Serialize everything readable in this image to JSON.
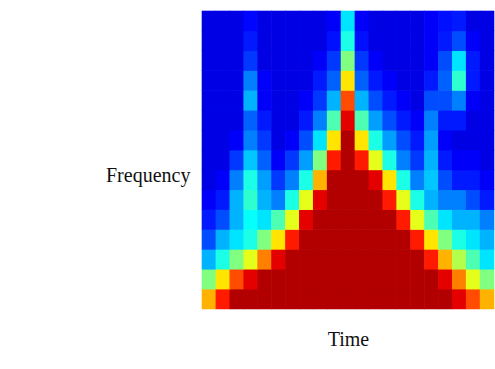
{
  "chart_data": {
    "type": "heatmap",
    "xlabel": "Time",
    "ylabel": "Frequency",
    "tick_labels": false,
    "color_range": [
      0,
      1
    ],
    "values": [
      [
        0.7,
        0.85,
        0.95,
        0.95,
        0.95,
        0.95,
        0.95,
        0.95,
        0.95,
        0.95,
        0.95,
        0.95,
        0.95,
        0.95,
        0.95,
        0.95,
        0.95,
        0.95,
        0.9,
        0.8,
        0.7
      ],
      [
        0.5,
        0.65,
        0.8,
        0.9,
        0.95,
        0.95,
        0.95,
        0.95,
        0.95,
        0.95,
        0.95,
        0.95,
        0.95,
        0.95,
        0.95,
        0.95,
        0.95,
        0.9,
        0.75,
        0.6,
        0.5
      ],
      [
        0.3,
        0.4,
        0.5,
        0.6,
        0.75,
        0.9,
        0.95,
        0.95,
        0.95,
        0.95,
        0.95,
        0.95,
        0.95,
        0.95,
        0.95,
        0.95,
        0.85,
        0.7,
        0.55,
        0.45,
        0.35
      ],
      [
        0.2,
        0.3,
        0.35,
        0.4,
        0.5,
        0.65,
        0.85,
        0.95,
        0.95,
        0.95,
        0.95,
        0.95,
        0.95,
        0.95,
        0.95,
        0.85,
        0.65,
        0.5,
        0.4,
        0.35,
        0.3
      ],
      [
        0.15,
        0.2,
        0.3,
        0.38,
        0.35,
        0.45,
        0.6,
        0.9,
        0.95,
        0.95,
        0.95,
        0.95,
        0.95,
        0.95,
        0.85,
        0.6,
        0.45,
        0.35,
        0.3,
        0.3,
        0.25
      ],
      [
        0.12,
        0.15,
        0.3,
        0.42,
        0.3,
        0.25,
        0.4,
        0.6,
        0.9,
        0.95,
        0.95,
        0.95,
        0.95,
        0.85,
        0.6,
        0.4,
        0.3,
        0.25,
        0.25,
        0.2,
        0.15
      ],
      [
        0.1,
        0.12,
        0.25,
        0.4,
        0.28,
        0.18,
        0.25,
        0.4,
        0.7,
        0.95,
        0.95,
        0.95,
        0.9,
        0.65,
        0.4,
        0.25,
        0.32,
        0.2,
        0.15,
        0.15,
        0.12
      ],
      [
        0.1,
        0.1,
        0.18,
        0.32,
        0.22,
        0.12,
        0.18,
        0.28,
        0.5,
        0.85,
        0.95,
        0.85,
        0.6,
        0.4,
        0.25,
        0.18,
        0.3,
        0.15,
        0.12,
        0.12,
        0.1
      ],
      [
        0.1,
        0.1,
        0.12,
        0.25,
        0.18,
        0.1,
        0.12,
        0.2,
        0.35,
        0.65,
        0.95,
        0.65,
        0.4,
        0.28,
        0.2,
        0.15,
        0.28,
        0.12,
        0.1,
        0.1,
        0.1
      ],
      [
        0.1,
        0.1,
        0.1,
        0.22,
        0.15,
        0.1,
        0.1,
        0.15,
        0.25,
        0.45,
        0.9,
        0.45,
        0.28,
        0.2,
        0.15,
        0.12,
        0.25,
        0.15,
        0.15,
        0.1,
        0.1
      ],
      [
        0.1,
        0.1,
        0.1,
        0.3,
        0.12,
        0.1,
        0.1,
        0.12,
        0.18,
        0.3,
        0.8,
        0.3,
        0.2,
        0.15,
        0.12,
        0.1,
        0.2,
        0.2,
        0.25,
        0.12,
        0.1
      ],
      [
        0.1,
        0.1,
        0.1,
        0.25,
        0.12,
        0.1,
        0.1,
        0.1,
        0.15,
        0.22,
        0.65,
        0.22,
        0.15,
        0.12,
        0.1,
        0.1,
        0.15,
        0.22,
        0.42,
        0.15,
        0.1
      ],
      [
        0.1,
        0.1,
        0.1,
        0.18,
        0.1,
        0.1,
        0.1,
        0.1,
        0.12,
        0.18,
        0.5,
        0.18,
        0.12,
        0.1,
        0.1,
        0.1,
        0.12,
        0.2,
        0.35,
        0.15,
        0.1
      ],
      [
        0.1,
        0.1,
        0.1,
        0.15,
        0.1,
        0.1,
        0.1,
        0.1,
        0.1,
        0.14,
        0.4,
        0.14,
        0.1,
        0.1,
        0.1,
        0.1,
        0.12,
        0.15,
        0.2,
        0.12,
        0.1
      ],
      [
        0.1,
        0.1,
        0.1,
        0.13,
        0.1,
        0.1,
        0.1,
        0.1,
        0.1,
        0.12,
        0.35,
        0.12,
        0.1,
        0.1,
        0.1,
        0.1,
        0.12,
        0.14,
        0.15,
        0.1,
        0.1
      ]
    ]
  }
}
